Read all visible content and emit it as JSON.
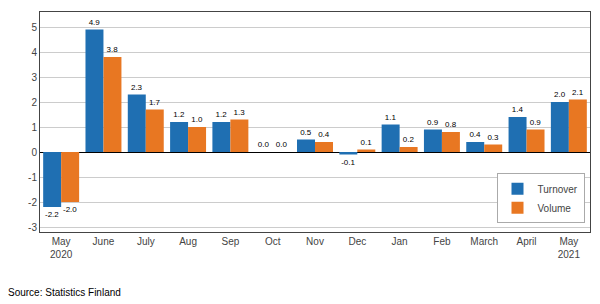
{
  "chart_data": {
    "type": "bar",
    "categories": [
      "May\n2020",
      "June",
      "July",
      "Aug",
      "Sep",
      "Oct",
      "Nov",
      "Dec",
      "Jan",
      "Feb",
      "March",
      "April",
      "May\n2021"
    ],
    "series": [
      {
        "name": "Turnover",
        "color": "#1F6FB2",
        "values": [
          -2.2,
          4.9,
          2.3,
          1.2,
          1.2,
          0.0,
          0.5,
          -0.1,
          1.1,
          0.9,
          0.4,
          1.4,
          2.0
        ],
        "value_labels": [
          "-2.2",
          "4.9",
          "2.3",
          "1.2",
          "1.2",
          "0.0",
          "0.5",
          "-0.1",
          "1.1",
          "0.9",
          "0.4",
          "1.4",
          "2.0"
        ]
      },
      {
        "name": "Volume",
        "color": "#E87722",
        "values": [
          -2.0,
          3.8,
          1.7,
          1.0,
          1.3,
          0.0,
          0.4,
          0.1,
          0.2,
          0.8,
          0.3,
          0.9,
          2.1
        ],
        "value_labels": [
          "-2.0",
          "3.8",
          "1.7",
          "1.0",
          "1.3",
          "0.0",
          "0.4",
          "0.1",
          "0.2",
          "0.8",
          "0.3",
          "0.9",
          "2.1"
        ]
      }
    ],
    "ylim": [
      -3.2,
      5.6
    ],
    "yticks": [
      -3,
      -2,
      -1,
      0,
      1,
      2,
      3,
      4,
      5
    ],
    "grid": true,
    "legend": "lower right",
    "data_labels": true,
    "annotations": [
      "Source: Statistics Finland"
    ]
  }
}
